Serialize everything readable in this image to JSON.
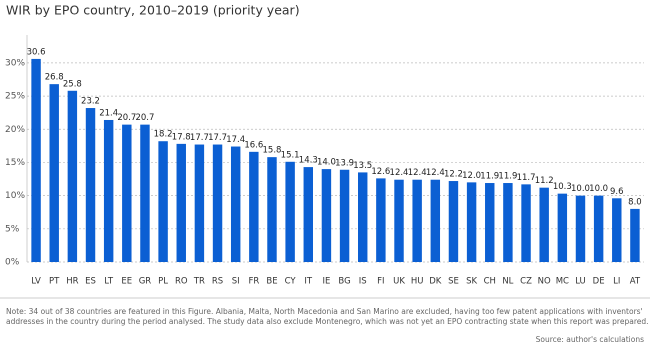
{
  "chart_data": {
    "type": "bar",
    "title": "WIR by EPO country, 2010–2019 (priority year)",
    "categories": [
      "LV",
      "PT",
      "HR",
      "ES",
      "LT",
      "EE",
      "GR",
      "PL",
      "RO",
      "TR",
      "RS",
      "SI",
      "FR",
      "BE",
      "CY",
      "IT",
      "IE",
      "BG",
      "IS",
      "FI",
      "UK",
      "HU",
      "DK",
      "SE",
      "SK",
      "CH",
      "NL",
      "CZ",
      "NO",
      "MC",
      "LU",
      "DE",
      "LI",
      "AT"
    ],
    "values": [
      30.6,
      26.8,
      25.8,
      23.2,
      21.4,
      20.7,
      20.7,
      18.2,
      17.8,
      17.7,
      17.7,
      17.4,
      16.6,
      15.8,
      15.1,
      14.3,
      14.0,
      13.9,
      13.5,
      12.6,
      12.4,
      12.4,
      12.4,
      12.2,
      12.0,
      11.9,
      11.9,
      11.7,
      11.2,
      10.3,
      10.0,
      10.0,
      9.6,
      8.0
    ],
    "value_labels": [
      "30.6",
      "26.8",
      "25.8",
      "23.2",
      "21.4",
      "20.7",
      "20.7",
      "18.2",
      "17.8",
      "17.7",
      "17.7",
      "17.4",
      "16.6",
      "15.8",
      "15.1",
      "14.3",
      "14.0",
      "13.9",
      "13.5",
      "12.6",
      "12.4",
      "12.4",
      "12.4",
      "12.2",
      "12.0",
      "11.9",
      "11.9",
      "11.7",
      "11.2",
      "10.3",
      "10.0",
      "10.0",
      "9.6",
      "8.0"
    ],
    "color": "#0b5fd3",
    "ylim": [
      0,
      33
    ],
    "yticks": [
      {
        "value": 0,
        "label": "0%"
      },
      {
        "value": 5,
        "label": "5%"
      },
      {
        "value": 10,
        "label": "10%"
      },
      {
        "value": 15,
        "label": "15%"
      },
      {
        "value": 20,
        "label": "20%"
      },
      {
        "value": 25,
        "label": "25%"
      },
      {
        "value": 30,
        "label": "30%"
      }
    ],
    "grid": true,
    "note": [
      "Note: 34 out of 38 countries are featured in this Figure. Albania, Malta, North Macedonia and San Marino are excluded, having too few patent applications with inventors'",
      "addresses in the country during the period analysed. The study data also exclude Montenegro, which was not yet an EPO contracting state when this report was prepared."
    ],
    "source": "Source: author's calculations"
  }
}
